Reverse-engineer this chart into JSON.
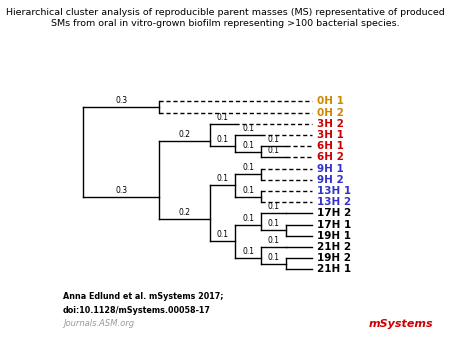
{
  "title_line1": "Hierarchical cluster analysis of reproducible parent masses (MS) representative of produced",
  "title_line2": "SMs from oral in vitro-grown biofilm representing >100 bacterial species.",
  "labels": [
    "0H 1",
    "0H 2",
    "3H 2",
    "3H 1",
    "6H 1",
    "6H 2",
    "9H 1",
    "9H 2",
    "13H 1",
    "13H 2",
    "17H 2",
    "17H 1",
    "19H 1",
    "21H 2",
    "19H 2",
    "21H 1"
  ],
  "label_colors": [
    "#cc8800",
    "#cc8800",
    "#cc0000",
    "#cc0000",
    "#cc0000",
    "#cc0000",
    "#3333cc",
    "#3333cc",
    "#3333cc",
    "#3333cc",
    "#000000",
    "#000000",
    "#000000",
    "#000000",
    "#000000",
    "#000000"
  ],
  "label_dashed": [
    true,
    true,
    true,
    true,
    false,
    false,
    true,
    true,
    true,
    true,
    false,
    false,
    false,
    false,
    false,
    false
  ],
  "footer_author": "Anna Edlund et al. mSystems 2017;",
  "footer_doi": "doi:10.1128/mSystems.00058-17",
  "footer_journal": "Journals.ASM.org",
  "bg_color": "#ffffff"
}
